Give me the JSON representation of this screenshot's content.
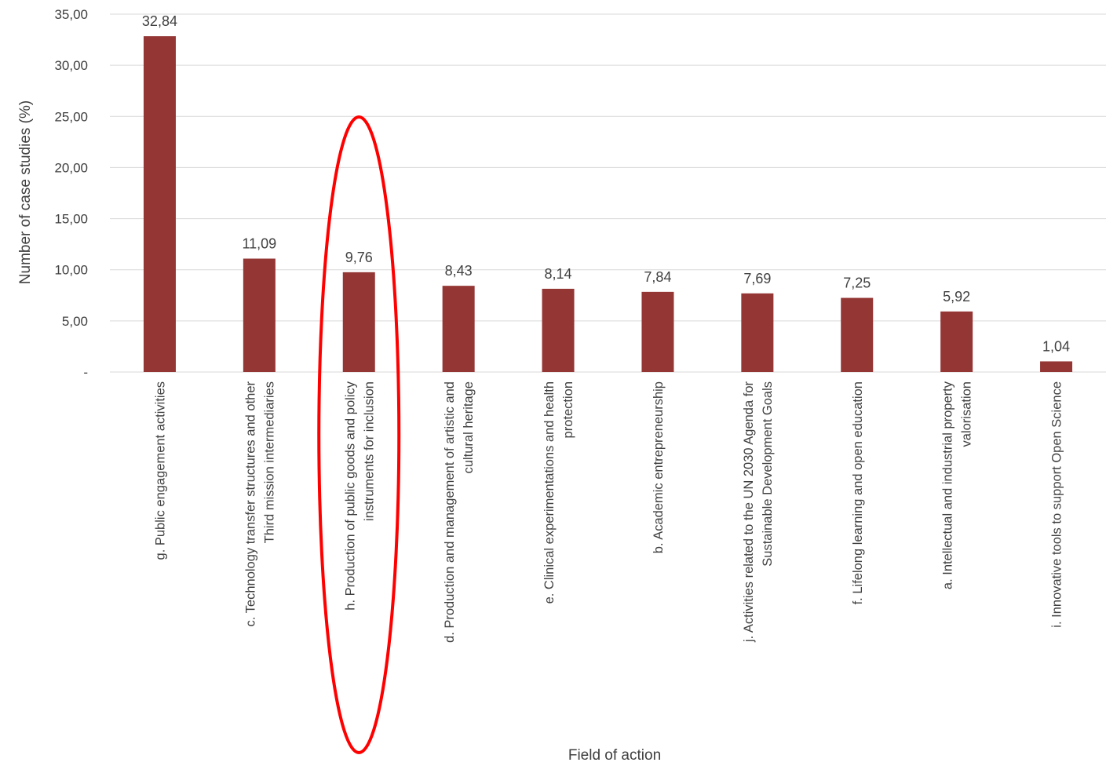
{
  "chart_data": {
    "type": "bar",
    "xlabel": "Field of action",
    "ylabel": "Number of case studies (%)",
    "ylim": [
      0,
      35
    ],
    "y_ticks": [
      "-",
      "5,00",
      "10,00",
      "15,00",
      "20,00",
      "25,00",
      "30,00",
      "35,00"
    ],
    "grid": "horizontal",
    "categories": [
      [
        "g. Public engagement activities"
      ],
      [
        "c. Technology transfer structures and other",
        "Third mission intermediaries"
      ],
      [
        "h. Production of public goods and policy",
        "instruments for inclusion"
      ],
      [
        "d. Production and management of artistic and",
        "cultural heritage"
      ],
      [
        "e. Clinical experimentations and health",
        "protection"
      ],
      [
        "b. Academic entrepreneurship"
      ],
      [
        "j. Activities related to the UN 2030 Agenda for",
        "Sustainable Development Goals"
      ],
      [
        "f. Lifelong learning and open education"
      ],
      [
        "a. Intellectual and industrial property",
        "valorisation"
      ],
      [
        "i. Innovative tools to support Open Science"
      ]
    ],
    "values": [
      32.84,
      11.09,
      9.76,
      8.43,
      8.14,
      7.84,
      7.69,
      7.25,
      5.92,
      1.04
    ],
    "value_labels": [
      "32,84",
      "11,09",
      "9,76",
      "8,43",
      "8,14",
      "7,84",
      "7,69",
      "7,25",
      "5,92",
      "1,04"
    ],
    "bar_color": "#943634",
    "grid_color": "#d9d9d9",
    "highlight": {
      "category_index": 2,
      "shape": "ellipse",
      "color": "#ff0000"
    }
  }
}
